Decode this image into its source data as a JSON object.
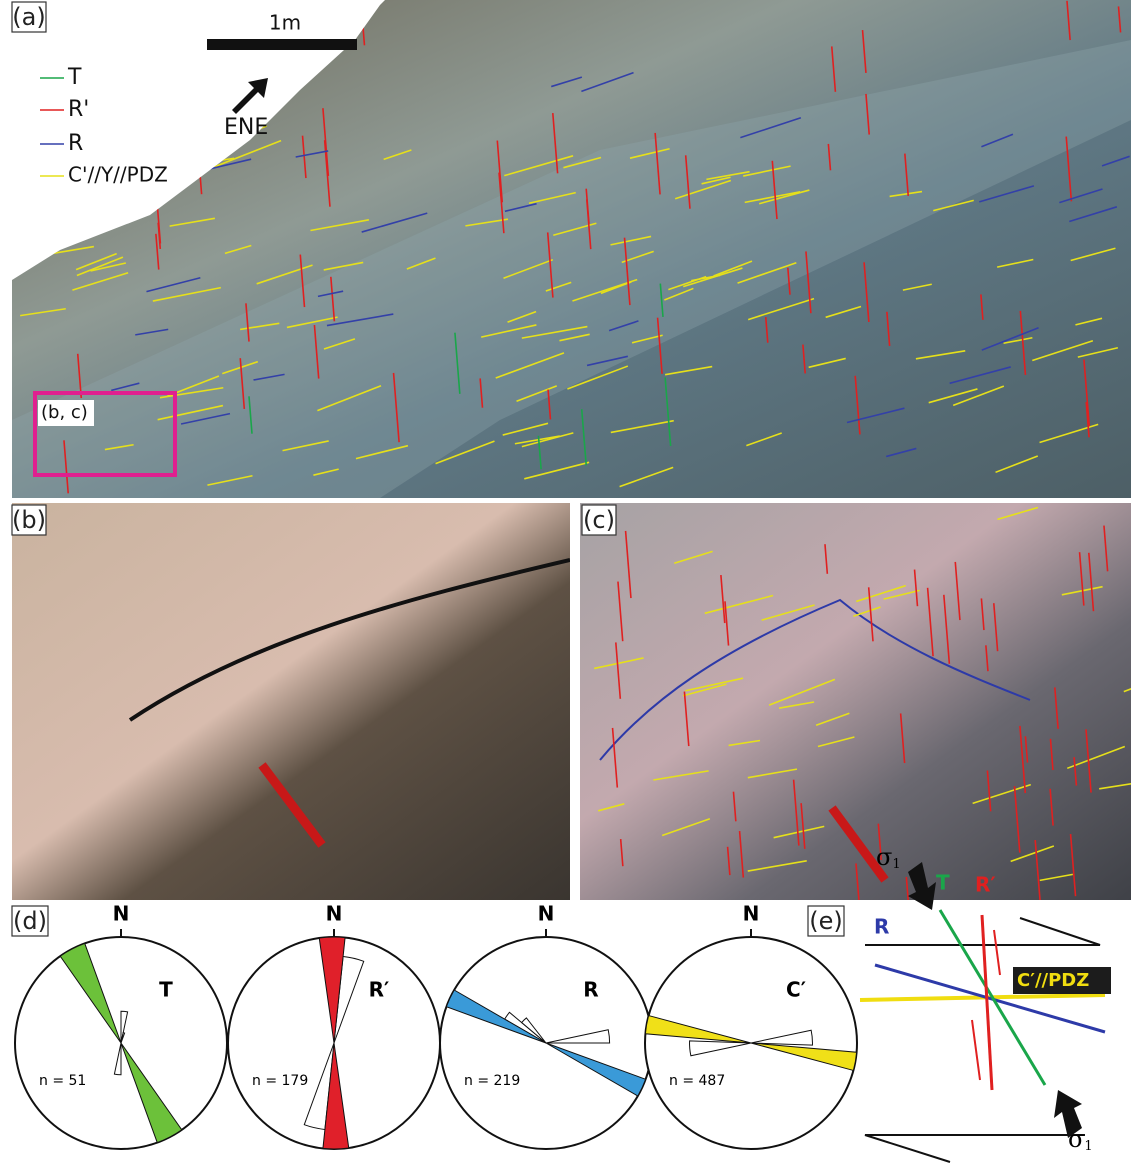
{
  "panel_a": {
    "label": "(a)",
    "scale": "1m",
    "direction": "ENE",
    "legend": [
      "T",
      "R'",
      "R",
      "C'//Y//PDZ"
    ],
    "inset": "(b, c)"
  },
  "panel_b": {
    "label": "(b)"
  },
  "panel_c": {
    "label": "(c)"
  },
  "panel_d": {
    "label": "(d)",
    "roses": [
      {
        "north": "N",
        "name": "T",
        "count": "n = 51"
      },
      {
        "north": "N",
        "name": "R′",
        "count": "n = 179"
      },
      {
        "north": "N",
        "name": "R",
        "count": "n = 219"
      },
      {
        "north": "N",
        "name": "C′",
        "count": "n = 487"
      }
    ]
  },
  "panel_e": {
    "label": "(e)",
    "sigma": "σ",
    "sigma_sub": "1",
    "labels": [
      "T",
      "R′",
      "R",
      "C′//PDZ"
    ]
  }
}
